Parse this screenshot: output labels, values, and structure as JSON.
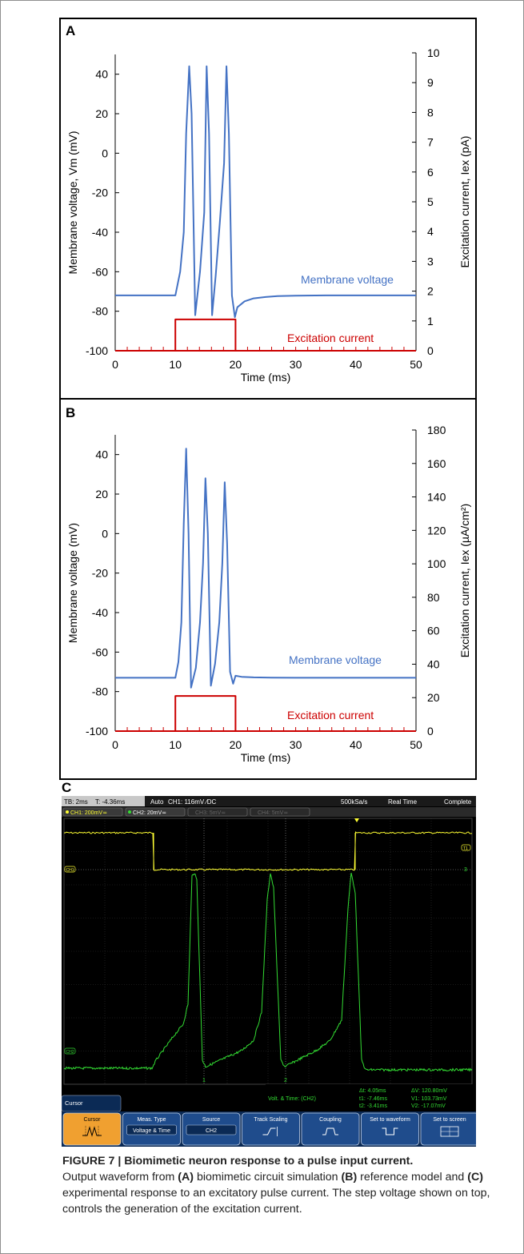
{
  "chart_data": [
    {
      "panel": "A",
      "type": "line",
      "xlabel": "Time (ms)",
      "ylabel": "Membrane voltage, Vm (mV)",
      "y2label": "Excitation current, Iex (pA)",
      "xlim": [
        0,
        50
      ],
      "ylim": [
        -100,
        50
      ],
      "y2lim": [
        0,
        10
      ],
      "xticks": [
        "0",
        "10",
        "20",
        "30",
        "40",
        "50"
      ],
      "yticks": [
        "40",
        "20",
        "0",
        "-20",
        "-40",
        "-60",
        "-80",
        "-100"
      ],
      "y2ticks": [
        "10",
        "9",
        "8",
        "7",
        "6",
        "5",
        "4",
        "3",
        "2",
        "1",
        "0"
      ],
      "series": [
        {
          "name": "Membrane voltage",
          "axis": "left",
          "color": "#4472c4",
          "x": [
            0,
            10,
            10.8,
            11.4,
            11.8,
            12.3,
            12.7,
            13.3,
            14.1,
            14.8,
            15.2,
            15.6,
            16.1,
            16.7,
            17.4,
            18.1,
            18.5,
            18.9,
            19.4,
            19.9,
            20.3,
            21.5,
            23,
            25,
            27,
            30,
            35,
            40,
            50
          ],
          "y": [
            -72,
            -72,
            -60,
            -40,
            10,
            44,
            20,
            -82,
            -60,
            -30,
            44,
            10,
            -82,
            -62,
            -35,
            -5,
            44,
            10,
            -72,
            -83,
            -78,
            -75,
            -73.5,
            -72.8,
            -72.3,
            -72.1,
            -72,
            -72,
            -72
          ]
        },
        {
          "name": "Excitation current",
          "axis": "right",
          "color": "#cc0000",
          "x": [
            0,
            10,
            10,
            20,
            20,
            50
          ],
          "y": [
            0,
            0,
            1.05,
            1.05,
            0,
            0
          ]
        }
      ]
    },
    {
      "panel": "B",
      "type": "line",
      "xlabel": "Time (ms)",
      "ylabel": "Membrane voltage  (mV)",
      "y2label": "Excitation current, Iex (µA/cm²)",
      "xlim": [
        0,
        50
      ],
      "ylim": [
        -100,
        50
      ],
      "y2lim": [
        0,
        180
      ],
      "xticks": [
        "0",
        "10",
        "20",
        "30",
        "40",
        "50"
      ],
      "yticks": [
        "40",
        "20",
        "0",
        "-20",
        "-40",
        "-60",
        "-80",
        "-100"
      ],
      "y2ticks": [
        "180",
        "160",
        "140",
        "120",
        "100",
        "80",
        "60",
        "40",
        "20",
        "0"
      ],
      "series": [
        {
          "name": "Membrane voltage",
          "axis": "left",
          "color": "#4472c4",
          "x": [
            0,
            10,
            10.5,
            11,
            11.4,
            11.8,
            12.2,
            12.6,
            13.4,
            14.1,
            14.6,
            15,
            15.4,
            15.9,
            16.6,
            17.3,
            17.8,
            18.2,
            18.6,
            19.1,
            19.6,
            20,
            21,
            23,
            26,
            30,
            40,
            50
          ],
          "y": [
            -73,
            -73,
            -65,
            -45,
            5,
            43,
            0,
            -78,
            -68,
            -45,
            -15,
            28,
            0,
            -77,
            -66,
            -45,
            -15,
            26,
            -5,
            -70,
            -76,
            -72,
            -72.5,
            -72.8,
            -72.9,
            -73,
            -73,
            -73
          ]
        },
        {
          "name": "Excitation current",
          "axis": "right",
          "color": "#cc0000",
          "x": [
            0,
            10,
            10,
            20,
            20,
            50
          ],
          "y": [
            0,
            0,
            21,
            21,
            0,
            0
          ]
        }
      ]
    }
  ],
  "annotations": {
    "a_letter": "A",
    "b_letter": "B",
    "a_membrane": "Membrane voltage",
    "a_excitation": "Excitation current",
    "b_membrane": "Membrane voltage",
    "b_excitation": "Excitation current"
  },
  "scope": {
    "letter": "C",
    "top_bar": {
      "timebase": "TB: 2ms",
      "trigger_time": "T: -4.36ms",
      "mode": "Auto",
      "trigger": "CH1: 116mV ∕DC",
      "sample_rate": "500kSa/s",
      "acq_mode": "Real Time",
      "status": "Complete"
    },
    "channels": [
      "CH1: 200mV≂",
      "CH2: 20mV≂",
      "CH3: 5mV≂",
      "CH4: 5mV≂"
    ],
    "markers": {
      "ch1": "CH1",
      "ch2": "CH2",
      "t_right": "T1",
      "three": "3",
      "cursor1": "1",
      "cursor2": "2"
    },
    "readout": {
      "mode": "Volt. & Time:  (CH2)",
      "dt": "Δt: 4.05ms",
      "t1": "t1: -7.46ms",
      "t2": "t2: -3.41ms",
      "dv": "ΔV: 120.80mV",
      "v1": "V1: 103.73mV",
      "v2": "V2: -17.07mV"
    },
    "menu_title": "Cursor",
    "softkeys": [
      {
        "label": "Cursor",
        "value": "",
        "icon": "cursor-waveform-icon",
        "active": true
      },
      {
        "label": "Meas. Type",
        "value": "Voltage & Time",
        "icon": "",
        "active": false
      },
      {
        "label": "Source",
        "value": "CH2",
        "icon": "",
        "active": false
      },
      {
        "label": "Track Scaling",
        "value": "",
        "icon": "track-scaling-icon",
        "active": false
      },
      {
        "label": "Coupling",
        "value": "",
        "icon": "coupling-icon",
        "active": false
      },
      {
        "label": "Set to waveform",
        "value": "",
        "icon": "set-waveform-icon",
        "active": false
      },
      {
        "label": "Set to screen",
        "value": "",
        "icon": "set-screen-icon",
        "active": false
      }
    ],
    "colors": {
      "ch1": "#ffff33",
      "ch2": "#33dd33",
      "active_key": "#f0a030"
    }
  },
  "caption": {
    "title": "FIGURE 7 | Biomimetic neuron response to a pulse input current.",
    "t1": "Output waveform from ",
    "a": "(A)",
    "t2": " biomimetic circuit simulation ",
    "b": "(B)",
    "t3": " reference model and ",
    "c": "(C)",
    "t4": " experimental response to an excitatory pulse current. The step voltage shown on top, controls the generation of the excitation current."
  }
}
